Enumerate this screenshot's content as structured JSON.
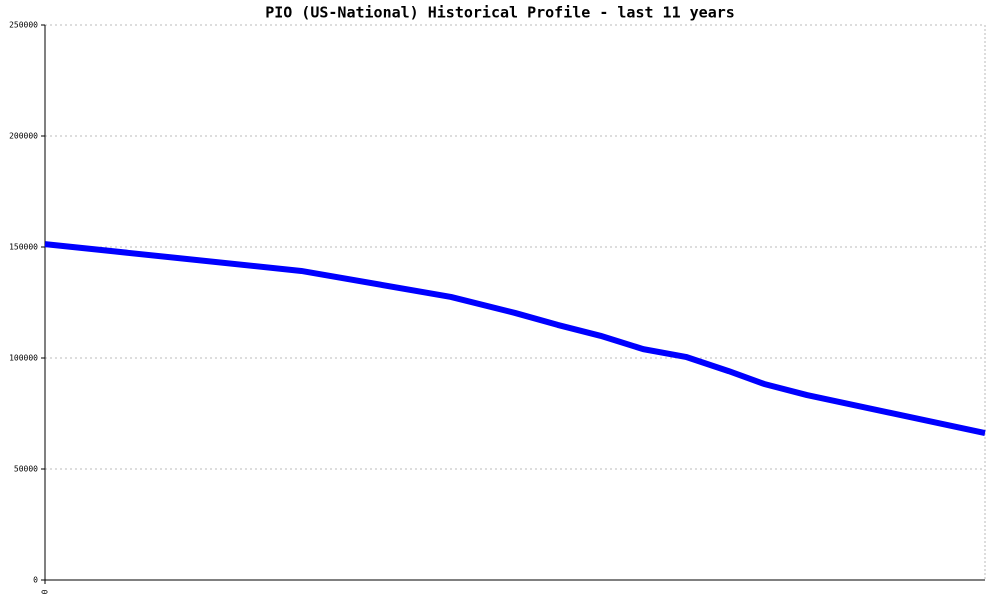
{
  "chart_data": {
    "type": "line",
    "title": "PIO (US-National) Historical Profile - last 11 years",
    "x": [
      0,
      36,
      57,
      66,
      72,
      78,
      84,
      90,
      96,
      101,
      107,
      132
    ],
    "series": [
      {
        "name": "PIO",
        "color": "#0000ff",
        "values": [
          151300,
          139200,
          127500,
          120300,
          114900,
          110000,
          104000,
          100500,
          94100,
          88300,
          83300,
          66200
        ]
      }
    ],
    "xlim": [
      0,
      132
    ],
    "xticks": [
      0
    ],
    "ylim": [
      0,
      250000
    ],
    "yticks": [
      0,
      50000,
      100000,
      150000,
      200000,
      250000
    ],
    "grid": true
  }
}
